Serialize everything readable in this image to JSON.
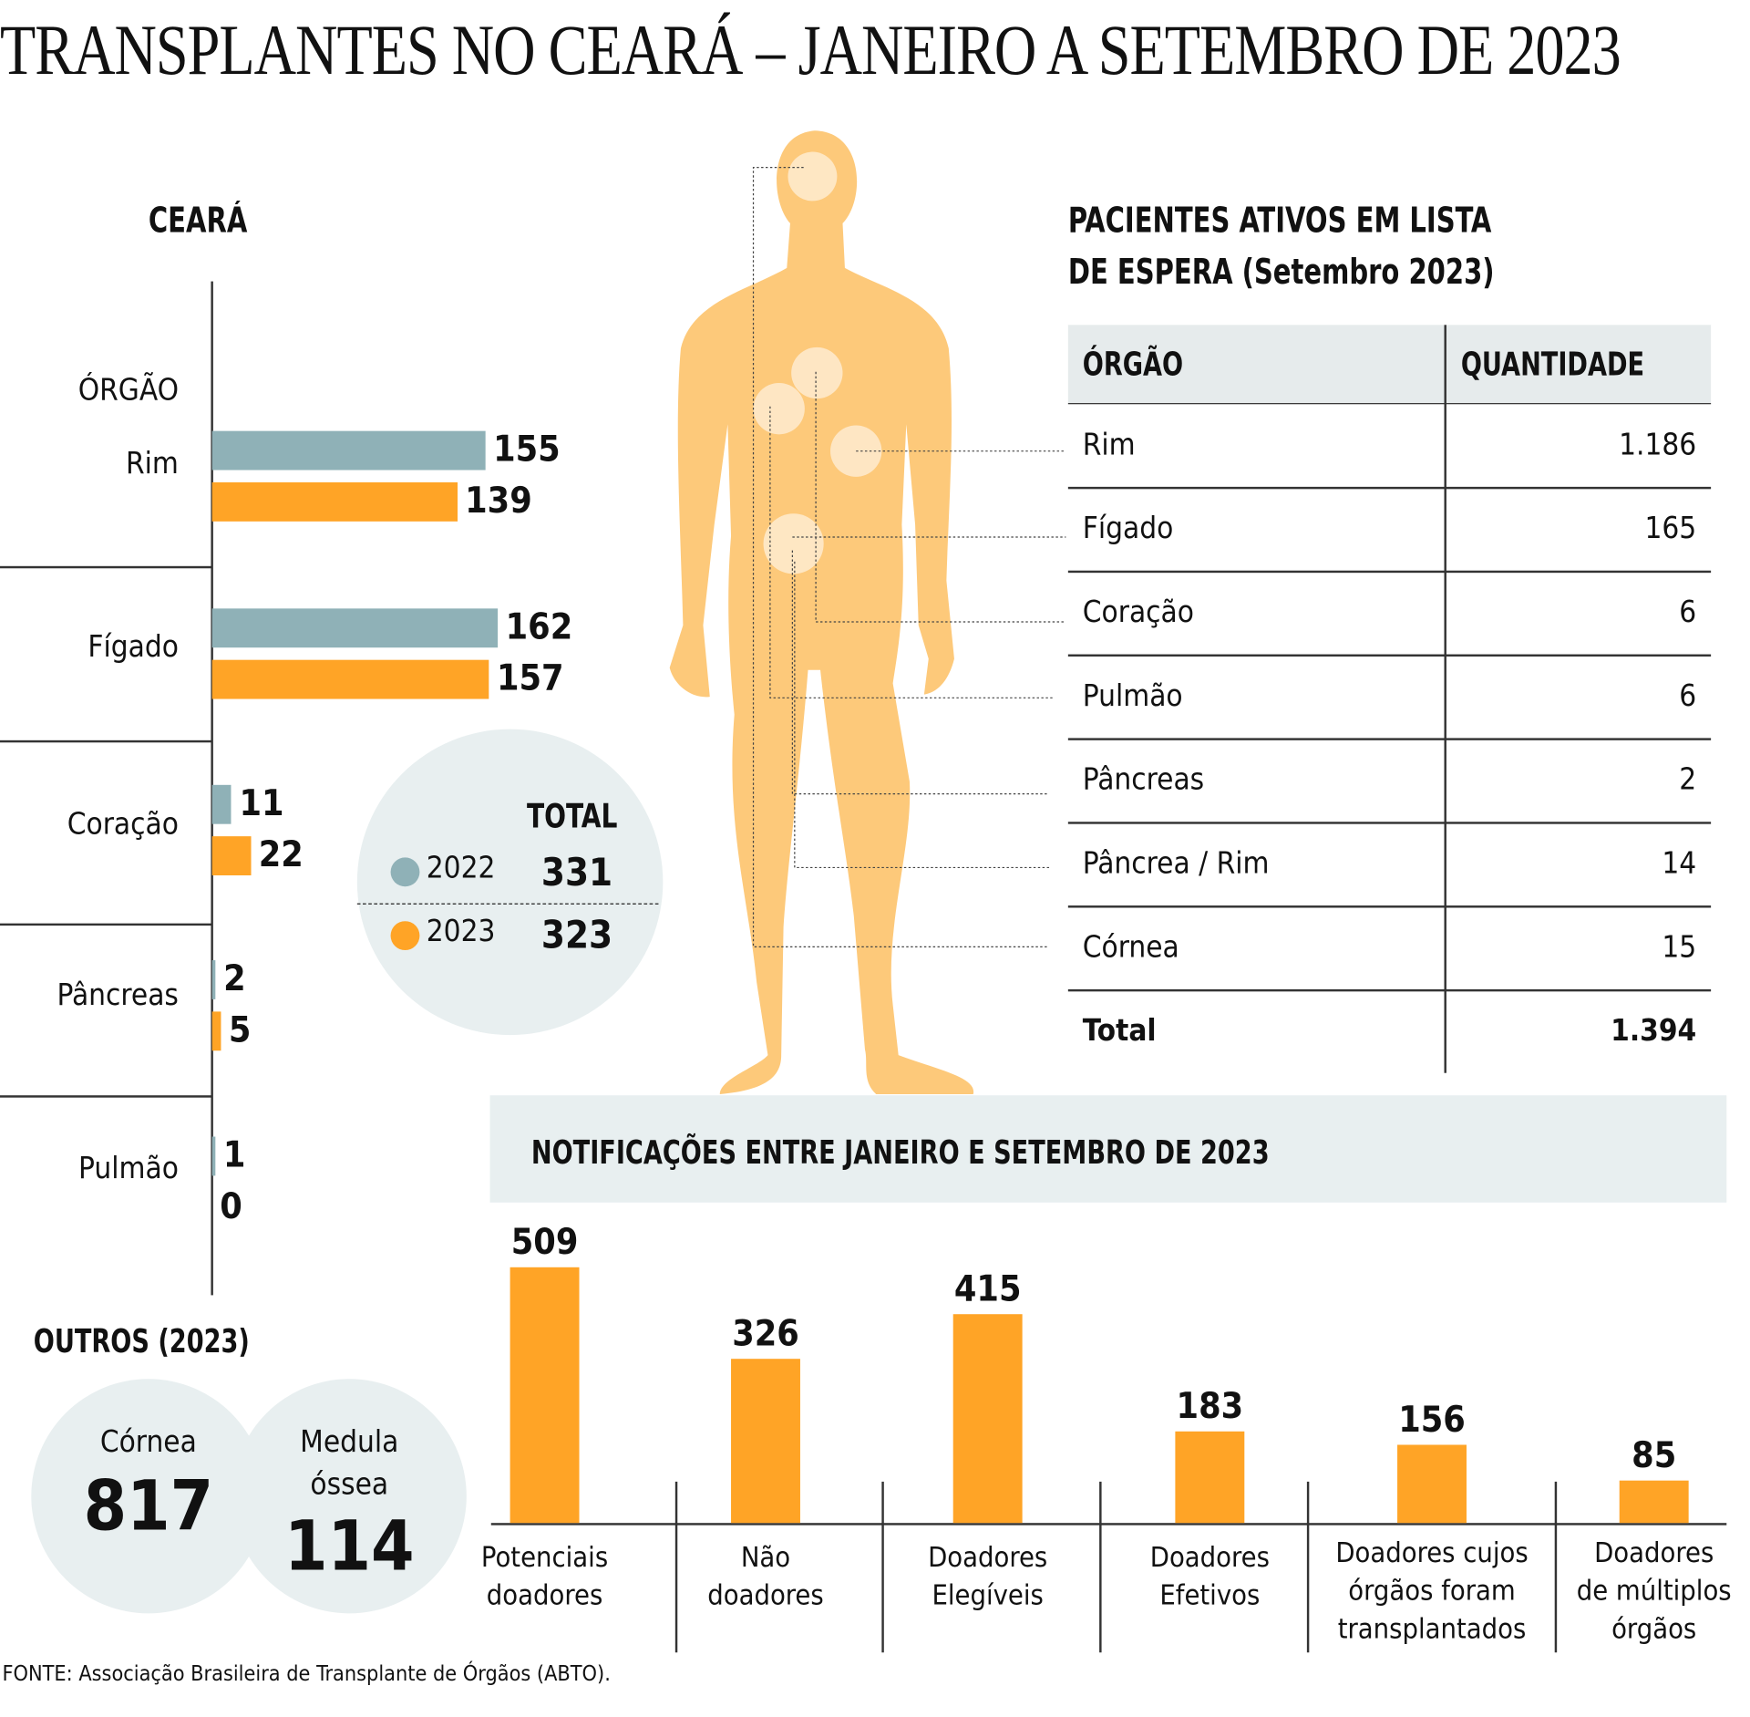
{
  "title": "TRANSPLANTES NO CEARÁ – JANEIRO A SETEMBRO DE 2023",
  "colors": {
    "y2022": "#8fb1b7",
    "y2023": "#ffa426",
    "body": "#fdc97a",
    "panel": "#e8eff0"
  },
  "ceara": {
    "heading": "CEARÁ",
    "column_label": "ÓRGÃO",
    "chart_data": {
      "type": "bar",
      "orientation": "horizontal",
      "categories": [
        "Rim",
        "Fígado",
        "Coração",
        "Pâncreas",
        "Pulmão"
      ],
      "series": [
        {
          "name": "2022",
          "values": [
            155,
            162,
            11,
            2,
            1
          ]
        },
        {
          "name": "2023",
          "values": [
            139,
            157,
            22,
            5,
            0
          ]
        }
      ]
    },
    "total": {
      "label": "TOTAL",
      "rows": [
        {
          "year": "2022",
          "value": "331"
        },
        {
          "year": "2023",
          "value": "323"
        }
      ]
    }
  },
  "outros": {
    "heading": "OUTROS (2023)",
    "items": [
      {
        "label": "Córnea",
        "value": "817"
      },
      {
        "label_line1": "Medula",
        "label_line2": "óssea",
        "value": "114"
      }
    ]
  },
  "waitlist": {
    "title_line1": "PACIENTES ATIVOS EM LISTA",
    "title_line2": "DE ESPERA (Setembro 2023)",
    "headers": [
      "ÓRGÃO",
      "QUANTIDADE"
    ],
    "rows": [
      {
        "organ": "Rim",
        "qty": "1.186"
      },
      {
        "organ": "Fígado",
        "qty": "165"
      },
      {
        "organ": "Coração",
        "qty": "6"
      },
      {
        "organ": "Pulmão",
        "qty": "6"
      },
      {
        "organ": "Pâncreas",
        "qty": "2"
      },
      {
        "organ": "Pâncrea / Rim",
        "qty": "14"
      },
      {
        "organ": "Córnea",
        "qty": "15"
      }
    ],
    "total": {
      "organ": "Total",
      "qty": "1.394"
    }
  },
  "notifications": {
    "heading": "NOTIFICAÇÕES ENTRE JANEIRO E SETEMBRO DE 2023",
    "chart_data": {
      "type": "bar",
      "categories": [
        "Potenciais doadores",
        "Não doadores",
        "Doadores Elegíveis",
        "Doadores Efetivos",
        "Doadores cujos órgãos foram transplantados",
        "Doadores de múltiplos órgãos"
      ],
      "values": [
        509,
        326,
        415,
        183,
        156,
        85
      ],
      "label_lines": [
        [
          "Potenciais",
          "doadores"
        ],
        [
          "Não",
          "doadores"
        ],
        [
          "Doadores",
          "Elegíveis"
        ],
        [
          "Doadores",
          "Efetivos"
        ],
        [
          "Doadores cujos",
          "órgãos foram",
          "transplantados"
        ],
        [
          "Doadores",
          "de múltiplos",
          "órgãos"
        ]
      ]
    }
  },
  "source": "FONTE: Associação Brasileira de Transplante de Órgãos (ABTO)."
}
